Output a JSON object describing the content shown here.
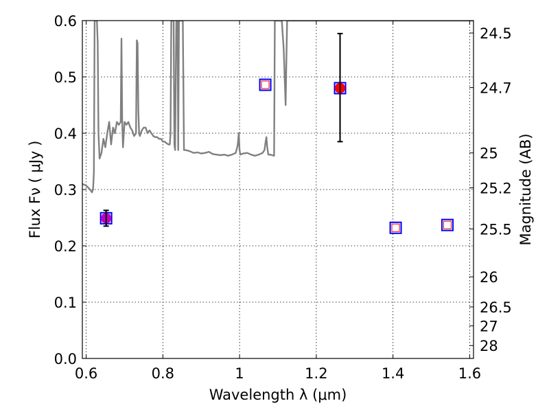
{
  "chart_data": {
    "type": "scatter",
    "title": "",
    "xlabel": "Wavelength  λ (μm)",
    "ylabel": "Flux  Fν  ( μJy )",
    "y2label": "Magnitude (AB)",
    "xlim": [
      0.59,
      1.61
    ],
    "ylim": [
      0.0,
      0.6
    ],
    "grid": true,
    "grid_style": "dotted",
    "x_ticks": [
      0.6,
      0.8,
      1.0,
      1.2,
      1.4,
      1.6
    ],
    "x_tick_labels": [
      "0.6",
      "0.8",
      "1",
      "1.2",
      "1.4",
      "1.6"
    ],
    "y_ticks": [
      0.0,
      0.1,
      0.2,
      0.3,
      0.4,
      0.5,
      0.6
    ],
    "y_tick_labels": [
      "0.0",
      "0.1",
      "0.2",
      "0.3",
      "0.4",
      "0.5",
      "0.6"
    ],
    "y2_ticks": [
      {
        "label": "24.5",
        "flux": 0.578
      },
      {
        "label": "24.7",
        "flux": 0.481
      },
      {
        "label": "25",
        "flux": 0.365
      },
      {
        "label": "25.2",
        "flux": 0.303
      },
      {
        "label": "25.5",
        "flux": 0.23
      },
      {
        "label": "26",
        "flux": 0.145
      },
      {
        "label": "26.5",
        "flux": 0.0915
      },
      {
        "label": "27",
        "flux": 0.0578
      },
      {
        "label": "28",
        "flux": 0.0229
      }
    ],
    "series": [
      {
        "kind": "line",
        "color": "#808080",
        "x": [
          0.59,
          0.6,
          0.61,
          0.615,
          0.618,
          0.62,
          0.622,
          0.625,
          0.628,
          0.63,
          0.632,
          0.635,
          0.64,
          0.645,
          0.65,
          0.655,
          0.66,
          0.665,
          0.67,
          0.675,
          0.68,
          0.685,
          0.69,
          0.692,
          0.694,
          0.696,
          0.7,
          0.705,
          0.71,
          0.715,
          0.72,
          0.725,
          0.73,
          0.732,
          0.734,
          0.736,
          0.738,
          0.74,
          0.745,
          0.75,
          0.755,
          0.76,
          0.765,
          0.77,
          0.775,
          0.78,
          0.785,
          0.79,
          0.795,
          0.8,
          0.805,
          0.81,
          0.815,
          0.818,
          0.82,
          0.822,
          0.825,
          0.828,
          0.83,
          0.832,
          0.835,
          0.838,
          0.84,
          0.842,
          0.845,
          0.848,
          0.85,
          0.852,
          0.855,
          0.86,
          0.87,
          0.88,
          0.89,
          0.9,
          0.91,
          0.92,
          0.93,
          0.94,
          0.95,
          0.96,
          0.97,
          0.98,
          0.99,
          0.995,
          0.998,
          1.0,
          1.002,
          1.005,
          1.01,
          1.02,
          1.03,
          1.04,
          1.05,
          1.06,
          1.065,
          1.068,
          1.07,
          1.072,
          1.075,
          1.08,
          1.085,
          1.09,
          1.092,
          1.094,
          1.096,
          1.1,
          1.105,
          1.11,
          1.115,
          1.12,
          1.122,
          1.124,
          1.126,
          1.13,
          1.135,
          1.14,
          1.145,
          1.148,
          1.15,
          1.152,
          1.155,
          1.16,
          1.17,
          1.18,
          1.19,
          1.195,
          1.198,
          1.2,
          1.202,
          1.205,
          1.21,
          1.22,
          1.23,
          1.24,
          1.25,
          1.26,
          1.27,
          1.28,
          1.29,
          1.3,
          1.31,
          1.32,
          1.33,
          1.34,
          1.35,
          1.36,
          1.37,
          1.38,
          1.39,
          1.4,
          1.41,
          1.42,
          1.425,
          1.43,
          1.435,
          1.44,
          1.445,
          1.45,
          1.455,
          1.46,
          1.465,
          1.47,
          1.48,
          1.49,
          1.5,
          1.505,
          1.51,
          1.515,
          1.52,
          1.523,
          1.525,
          1.528,
          1.53,
          1.533,
          1.535,
          1.538,
          1.54,
          1.542,
          1.545,
          1.55,
          1.555,
          1.56,
          1.57,
          1.58,
          1.59,
          1.6,
          1.61
        ],
        "y": [
          0.31,
          0.307,
          0.3,
          0.295,
          0.3,
          0.33,
          0.6,
          0.6,
          0.6,
          0.56,
          0.4,
          0.355,
          0.365,
          0.39,
          0.375,
          0.4,
          0.42,
          0.38,
          0.41,
          0.4,
          0.42,
          0.415,
          0.42,
          0.568,
          0.42,
          0.375,
          0.42,
          0.415,
          0.42,
          0.41,
          0.405,
          0.395,
          0.4,
          0.565,
          0.56,
          0.44,
          0.4,
          0.395,
          0.405,
          0.41,
          0.41,
          0.4,
          0.405,
          0.4,
          0.395,
          0.393,
          0.393,
          0.39,
          0.39,
          0.385,
          0.385,
          0.382,
          0.38,
          0.38,
          0.4,
          0.6,
          0.6,
          0.6,
          0.38,
          0.37,
          0.6,
          0.6,
          0.37,
          0.6,
          0.6,
          0.6,
          0.6,
          0.6,
          0.37,
          0.37,
          0.368,
          0.365,
          0.366,
          0.364,
          0.365,
          0.367,
          0.363,
          0.362,
          0.361,
          0.362,
          0.36,
          0.362,
          0.365,
          0.378,
          0.4,
          0.37,
          0.362,
          0.363,
          0.364,
          0.365,
          0.362,
          0.36,
          0.362,
          0.365,
          0.37,
          0.385,
          0.393,
          0.375,
          0.362,
          0.362,
          0.361,
          0.36,
          0.6,
          0.6,
          0.6,
          0.6,
          0.6,
          0.6,
          0.55,
          0.45,
          0.53,
          0.6,
          0.6,
          0.6,
          0.6,
          0.6,
          0.6,
          0.6,
          0.6,
          0.6,
          0.6,
          0.6,
          0.6,
          0.6,
          0.6,
          0.6,
          0.6,
          0.6,
          0.6,
          0.6,
          0.6,
          0.6,
          0.6,
          0.6,
          0.6,
          0.6,
          0.6,
          0.6,
          0.6,
          0.6,
          0.6,
          0.6,
          0.6,
          0.6,
          0.6,
          0.6,
          0.6,
          0.6,
          0.6,
          0.6,
          0.6,
          0.6,
          0.6,
          0.6,
          0.6,
          0.6,
          0.6,
          0.6,
          0.6,
          0.6,
          0.6,
          0.6,
          0.6,
          0.6,
          0.6,
          0.6,
          0.6,
          0.6,
          0.6,
          0.6,
          0.6,
          0.6,
          0.6,
          0.6,
          0.6,
          0.6,
          0.6,
          0.6,
          0.6,
          0.6,
          0.6,
          0.6,
          0.6,
          0.6,
          0.6,
          0.6,
          0.6
        ]
      },
      {
        "kind": "open-square",
        "edge_color": "#0000ff",
        "inner_color": "#ff0000",
        "x": [
          0.652,
          1.067,
          1.262,
          1.407,
          1.542
        ],
        "y": [
          0.249,
          0.486,
          0.48,
          0.232,
          0.237
        ]
      },
      {
        "kind": "filled-circle",
        "colors": [
          "#bf00bf",
          "#ff0000"
        ],
        "x": [
          0.652,
          1.262
        ],
        "y": [
          0.249,
          0.48
        ],
        "yerr_low": [
          0.014,
          0.095
        ],
        "yerr_high": [
          0.014,
          0.097
        ]
      }
    ]
  }
}
